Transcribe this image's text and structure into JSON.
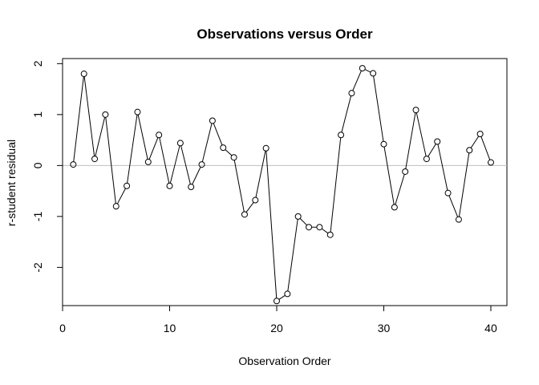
{
  "chart_data": {
    "type": "line",
    "title": "Observations versus Order",
    "xlabel": "Observation Order",
    "ylabel": "r-student residual",
    "xlim": [
      0,
      41.5
    ],
    "ylim": [
      -2.75,
      2.1
    ],
    "xticks": [
      0,
      10,
      20,
      30,
      40
    ],
    "yticks": [
      -2,
      -1,
      0,
      1,
      2
    ],
    "reference_line": 0,
    "reference_line_color": "#bebebe",
    "series_color": "#000000",
    "marker": "open-circle",
    "x": [
      1,
      2,
      3,
      4,
      5,
      6,
      7,
      8,
      9,
      10,
      11,
      12,
      13,
      14,
      15,
      16,
      17,
      18,
      19,
      20,
      21,
      22,
      23,
      24,
      25,
      26,
      27,
      28,
      29,
      30,
      31,
      32,
      33,
      34,
      35,
      36,
      37,
      38,
      39,
      40
    ],
    "y": [
      0.02,
      1.8,
      0.13,
      1.0,
      -0.8,
      -0.4,
      1.05,
      0.07,
      0.6,
      -0.4,
      0.44,
      -0.42,
      0.02,
      0.88,
      0.35,
      0.16,
      -0.96,
      -0.68,
      0.34,
      -2.66,
      -2.52,
      -1.0,
      -1.21,
      -1.21,
      -1.36,
      0.6,
      1.42,
      1.91,
      1.81,
      0.42,
      -0.82,
      -0.12,
      1.09,
      0.13,
      0.47,
      -0.54,
      -1.06,
      0.3,
      0.62,
      0.06
    ]
  }
}
